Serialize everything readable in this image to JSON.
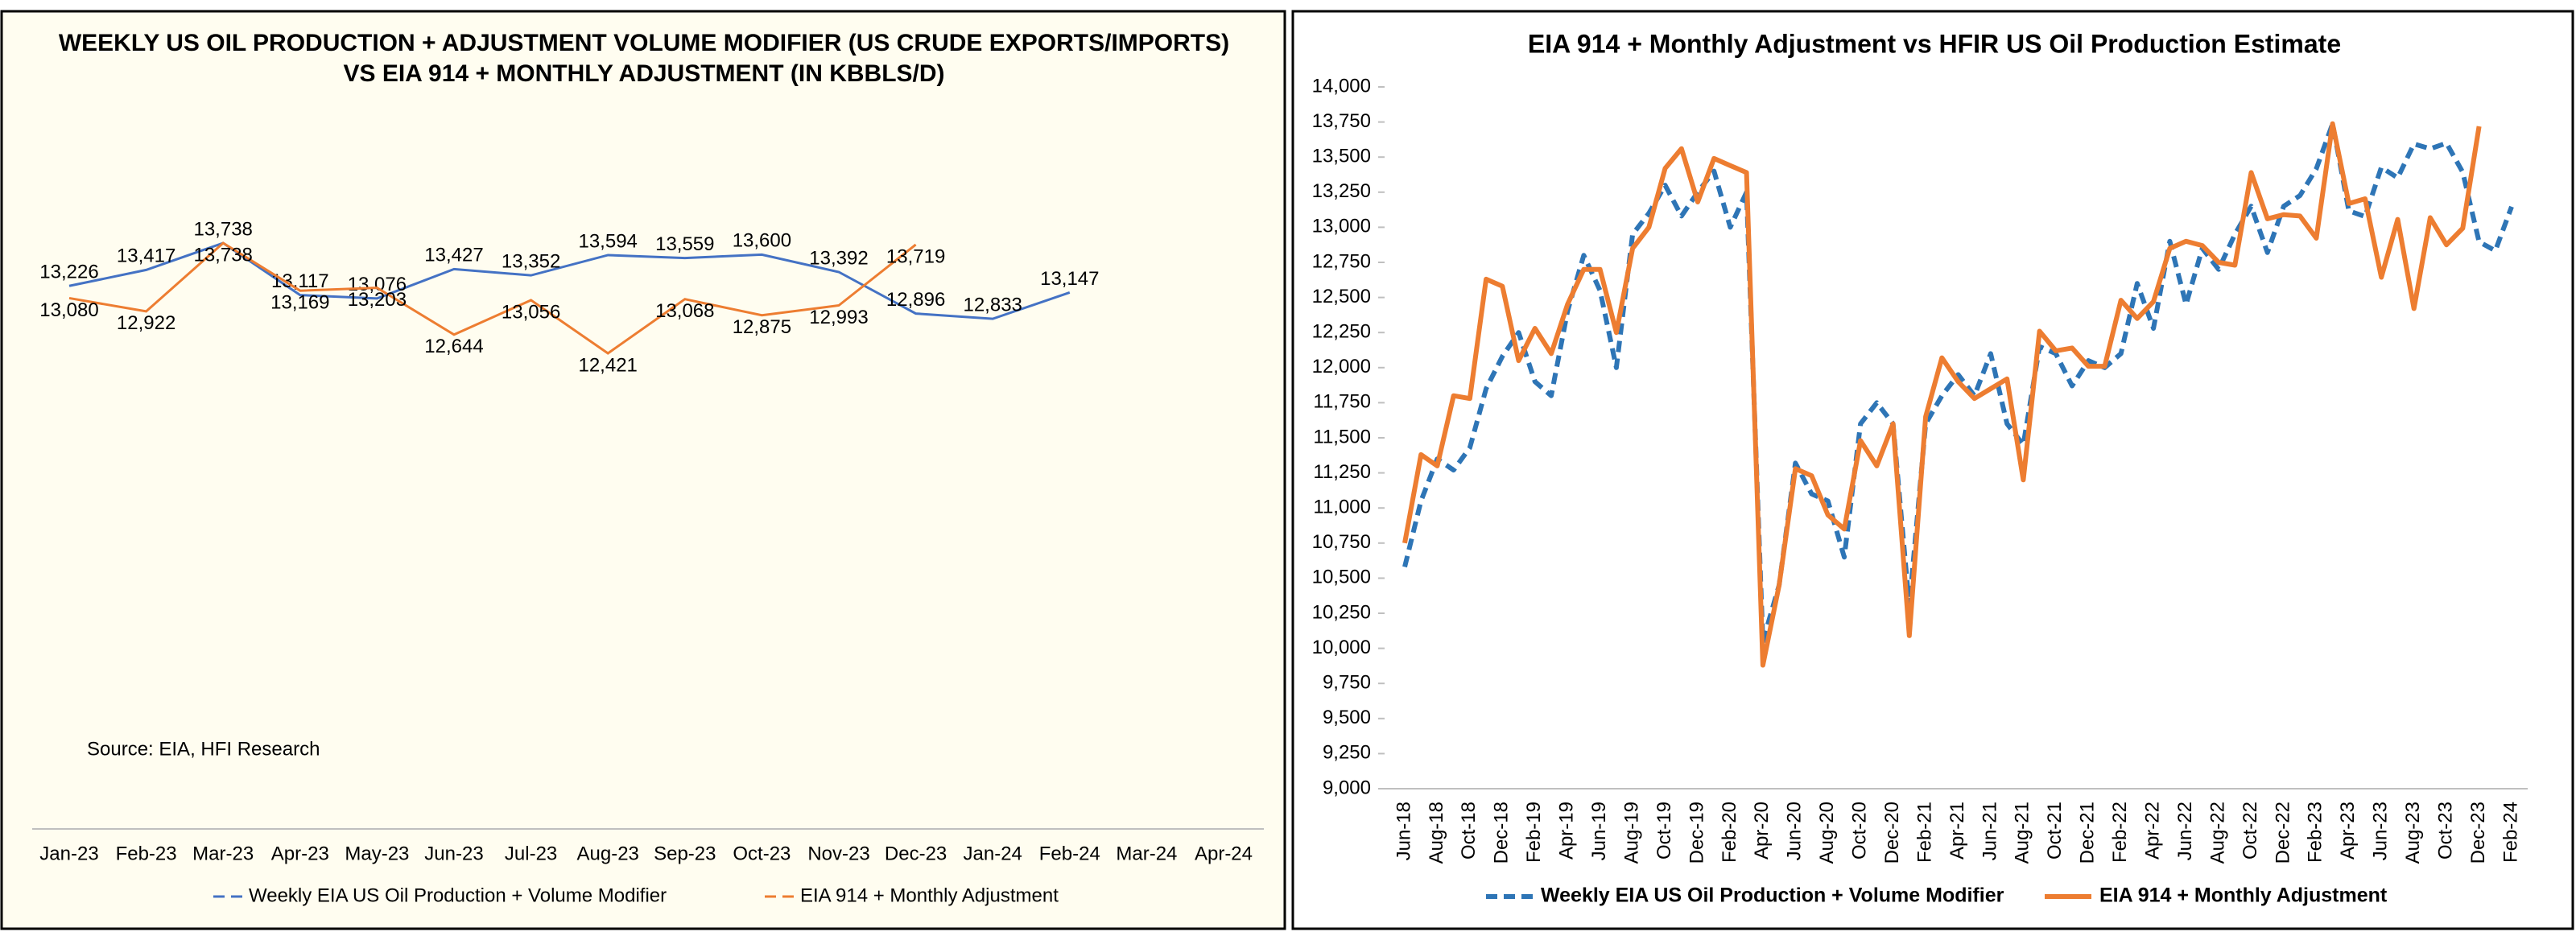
{
  "chart_data": [
    {
      "type": "line",
      "title": "WEEKLY US OIL PRODUCTION + ADJUSTMENT VOLUME MODIFIER (US CRUDE EXPORTS/IMPORTS) VS EIA 914 + MONTHLY ADJUSTMENT (IN KBBLS/D)",
      "annotation": "Source: EIA, HFI Research",
      "categories": [
        "Jan-23",
        "Feb-23",
        "Mar-23",
        "Apr-23",
        "May-23",
        "Jun-23",
        "Jul-23",
        "Aug-23",
        "Sep-23",
        "Oct-23",
        "Nov-23",
        "Dec-23",
        "Jan-24",
        "Feb-24",
        "Mar-24",
        "Apr-24"
      ],
      "series": [
        {
          "name": "Weekly EIA US Oil Production + Volume Modifier",
          "color": "#4472c4",
          "values": [
            13226,
            13417,
            13738,
            13117,
            13076,
            13427,
            13352,
            13594,
            13559,
            13600,
            13392,
            12896,
            12833,
            13147,
            null,
            null
          ],
          "value_labels": [
            "13,226",
            "13,417",
            "13,738",
            "13,117",
            "13,076",
            "13,427",
            "13,352",
            "13,594",
            "13,559",
            "13,600",
            "13,392",
            "12,896",
            "12,833",
            "13,147",
            null,
            null
          ]
        },
        {
          "name": "EIA 914 + Monthly Adjustment",
          "color": "#ed7d31",
          "values": [
            13080,
            12922,
            13738,
            13169,
            13203,
            12644,
            13056,
            12421,
            13068,
            12875,
            12993,
            13719,
            null,
            null,
            null,
            null
          ],
          "value_labels": [
            "13,080",
            "12,922",
            "13,738",
            "13,169",
            "13,203",
            "12,644",
            "13,056",
            "12,421",
            "13,068",
            "12,875",
            "12,993",
            "13,719",
            null,
            null,
            null,
            null
          ]
        }
      ]
    },
    {
      "type": "line",
      "title": "EIA 914 + Monthly Adjustment vs HFIR US Oil Production Estimate",
      "categories": [
        "Jun-18",
        null,
        "Aug-18",
        null,
        "Oct-18",
        null,
        "Dec-18",
        null,
        "Feb-19",
        null,
        "Apr-19",
        null,
        "Jun-19",
        null,
        "Aug-19",
        null,
        "Oct-19",
        null,
        "Dec-19",
        null,
        "Feb-20",
        null,
        "Apr-20",
        null,
        "Jun-20",
        null,
        "Aug-20",
        null,
        "Oct-20",
        null,
        "Dec-20",
        null,
        "Feb-21",
        null,
        "Apr-21",
        null,
        "Jun-21",
        null,
        "Aug-21",
        null,
        "Oct-21",
        null,
        "Dec-21",
        null,
        "Feb-22",
        null,
        "Apr-22",
        null,
        "Jun-22",
        null,
        "Aug-22",
        null,
        "Oct-22",
        null,
        "Dec-22",
        null,
        "Feb-23",
        null,
        "Apr-23",
        null,
        "Jun-23",
        null,
        "Aug-23",
        null,
        "Oct-23",
        null,
        "Dec-23",
        null,
        "Feb-24"
      ],
      "ylim": [
        9000,
        14000
      ],
      "yticks": [
        {
          "value": 9000,
          "label": "9,000"
        },
        {
          "value": 9250,
          "label": "9,250"
        },
        {
          "value": 9500,
          "label": "9,500"
        },
        {
          "value": 9750,
          "label": "9,750"
        },
        {
          "value": 10000,
          "label": "10,000"
        },
        {
          "value": 10250,
          "label": "10,250"
        },
        {
          "value": 10500,
          "label": "10,500"
        },
        {
          "value": 10750,
          "label": "10,750"
        },
        {
          "value": 11000,
          "label": "11,000"
        },
        {
          "value": 11250,
          "label": "11,250"
        },
        {
          "value": 11500,
          "label": "11,500"
        },
        {
          "value": 11750,
          "label": "11,750"
        },
        {
          "value": 12000,
          "label": "12,000"
        },
        {
          "value": 12250,
          "label": "12,250"
        },
        {
          "value": 12500,
          "label": "12,500"
        },
        {
          "value": 12750,
          "label": "12,750"
        },
        {
          "value": 13000,
          "label": "13,000"
        },
        {
          "value": 13250,
          "label": "13,250"
        },
        {
          "value": 13500,
          "label": "13,500"
        },
        {
          "value": 13750,
          "label": "13,750"
        },
        {
          "value": 14000,
          "label": "14,000"
        }
      ],
      "series": [
        {
          "name": "Weekly EIA US Oil Production + Volume Modifier",
          "color": "#2e75b6",
          "dashed": true,
          "values": [
            10580,
            11050,
            11350,
            11270,
            11430,
            11850,
            12080,
            12250,
            11900,
            11800,
            12400,
            12800,
            12550,
            12000,
            12950,
            13100,
            13300,
            13080,
            13250,
            13400,
            13000,
            13250,
            10050,
            10450,
            11320,
            11100,
            11050,
            10650,
            11600,
            11750,
            11600,
            10300,
            11600,
            11800,
            11950,
            11800,
            12100,
            11600,
            11450,
            12150,
            12100,
            11870,
            12050,
            12000,
            12100,
            12600,
            12280,
            12900,
            12450,
            12850,
            12700,
            12950,
            13150,
            12820,
            13150,
            13226,
            13417,
            13738,
            13117,
            13076,
            13427,
            13352,
            13594,
            13559,
            13600,
            13392,
            12896,
            12833,
            13147
          ]
        },
        {
          "name": "EIA 914 + Monthly Adjustment",
          "color": "#ed7d31",
          "dashed": false,
          "values": [
            10750,
            11380,
            11300,
            11800,
            11780,
            12630,
            12580,
            12050,
            12280,
            12100,
            12450,
            12700,
            12700,
            12250,
            12850,
            13000,
            13420,
            13560,
            13180,
            13490,
            13440,
            13390,
            9880,
            10450,
            11280,
            11230,
            10950,
            10850,
            11480,
            11300,
            11600,
            10090,
            11650,
            12070,
            11900,
            11780,
            11850,
            11920,
            11200,
            12260,
            12120,
            12140,
            12010,
            12010,
            12480,
            12350,
            12470,
            12850,
            12900,
            12870,
            12750,
            12730,
            13390,
            13060,
            13090,
            13080,
            12922,
            13738,
            13169,
            13203,
            12644,
            13056,
            12421,
            13068,
            12875,
            12993,
            13719,
            null,
            null
          ]
        }
      ]
    }
  ]
}
